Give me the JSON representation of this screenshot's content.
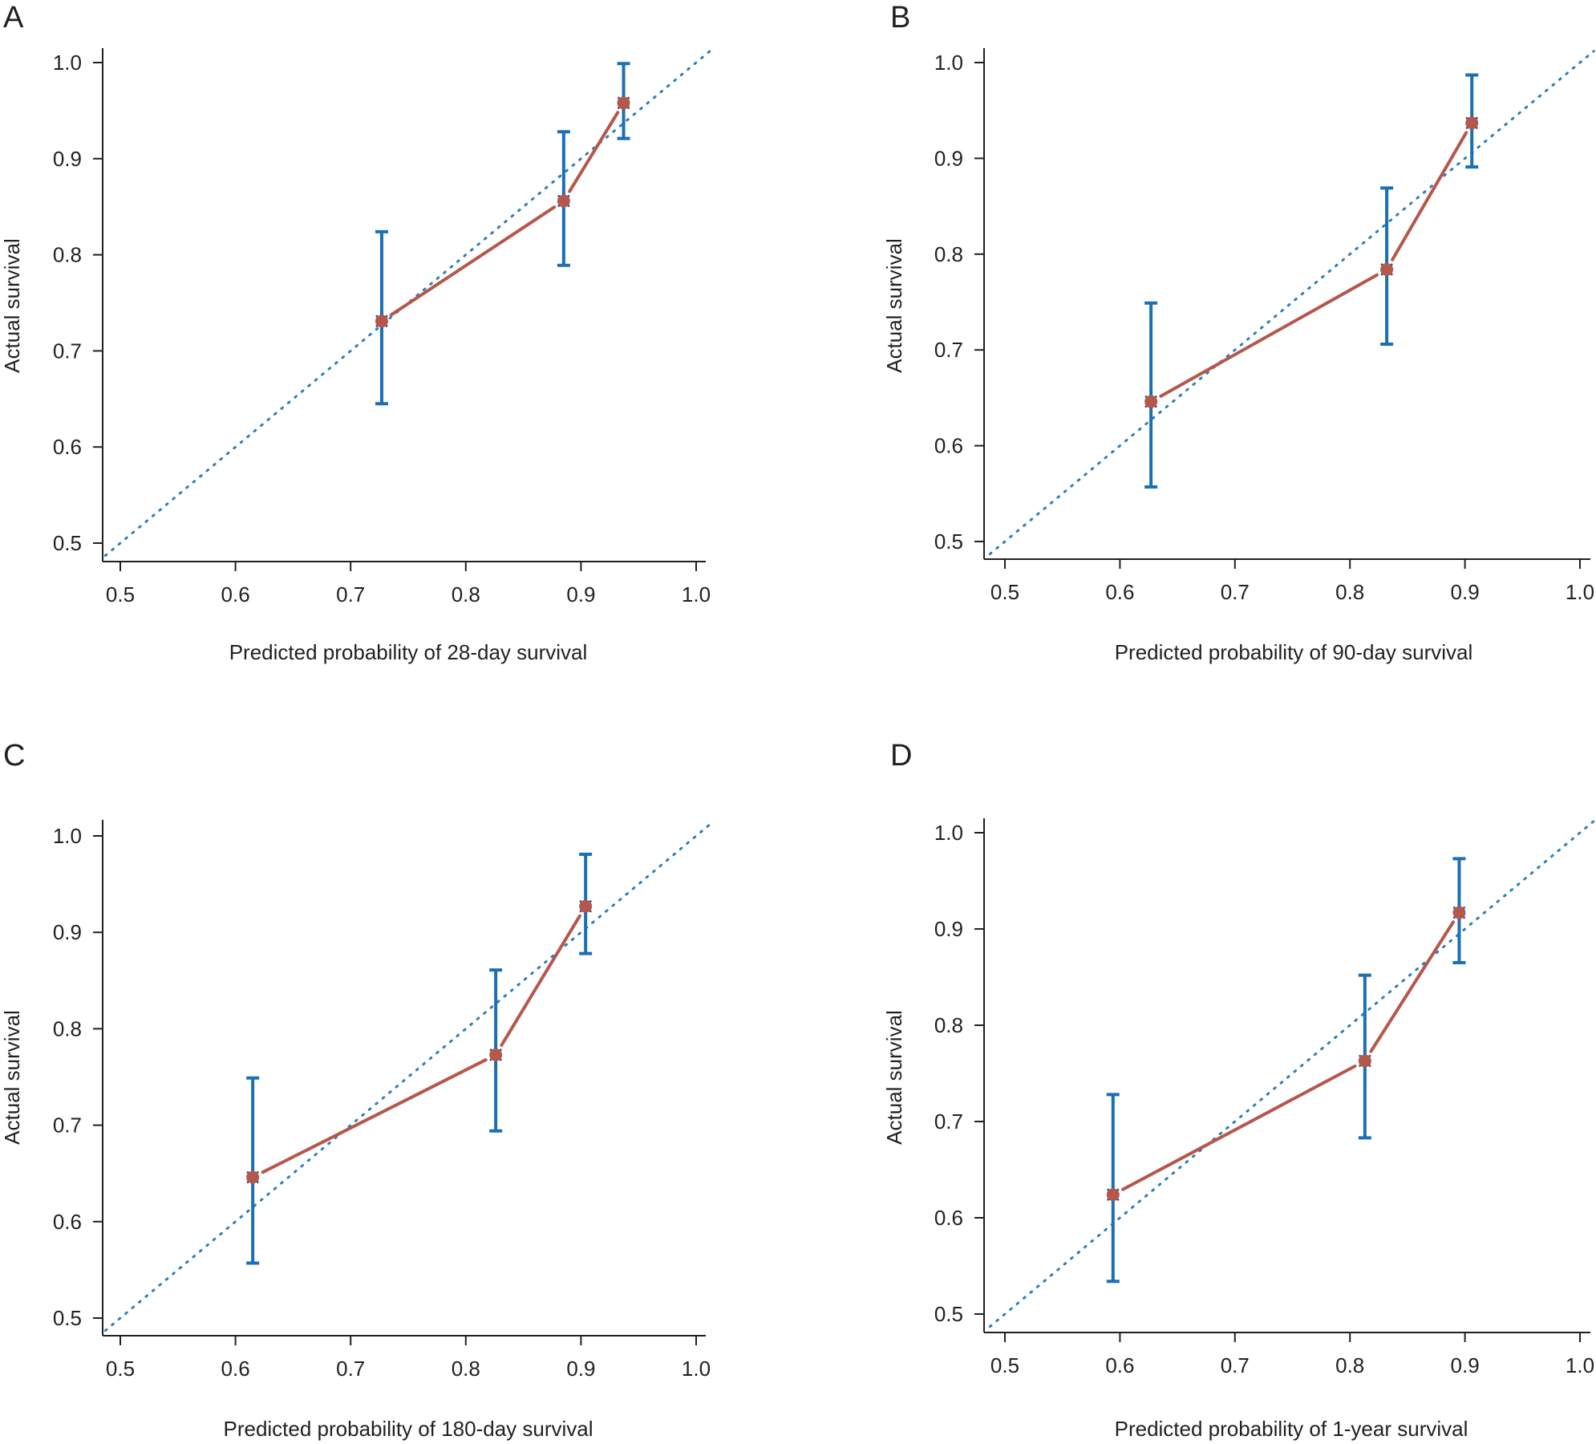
{
  "colors": {
    "observed_line": "#b5574a",
    "observed_point": "#b5574a",
    "error_bar": "#1b6fb5",
    "ideal_line": "#2c7fb8",
    "axis": "#231f20",
    "background": "#ffffff"
  },
  "chart_data": [
    {
      "type": "line",
      "panel": "A",
      "xlabel": "Predicted probability of 28-day survival",
      "ylabel": "Actual survival",
      "xlim": [
        0.5,
        1.0
      ],
      "ylim": [
        0.5,
        1.0
      ],
      "xticks": [
        "0.5",
        "0.6",
        "0.7",
        "0.8",
        "0.9",
        "1.0"
      ],
      "yticks": [
        "0.5",
        "0.6",
        "0.7",
        "0.8",
        "0.9",
        "1.0"
      ],
      "grid": false,
      "reference_line": "diagonal y = x (dotted)",
      "points": [
        {
          "x": 0.727,
          "y": 0.731,
          "lower": 0.645,
          "upper": 0.824
        },
        {
          "x": 0.885,
          "y": 0.856,
          "lower": 0.789,
          "upper": 0.928
        },
        {
          "x": 0.937,
          "y": 0.958,
          "lower": 0.921,
          "upper": 0.999
        }
      ]
    },
    {
      "type": "line",
      "panel": "B",
      "xlabel": "Predicted probability of 90-day survival",
      "ylabel": "Actual survival",
      "xlim": [
        0.5,
        1.0
      ],
      "ylim": [
        0.5,
        1.0
      ],
      "xticks": [
        "0.5",
        "0.6",
        "0.7",
        "0.8",
        "0.9",
        "1.0"
      ],
      "yticks": [
        "0.5",
        "0.6",
        "0.7",
        "0.8",
        "0.9",
        "1.0"
      ],
      "grid": false,
      "reference_line": "diagonal y = x (dotted)",
      "points": [
        {
          "x": 0.627,
          "y": 0.646,
          "lower": 0.557,
          "upper": 0.749
        },
        {
          "x": 0.832,
          "y": 0.784,
          "lower": 0.706,
          "upper": 0.869
        },
        {
          "x": 0.906,
          "y": 0.937,
          "lower": 0.891,
          "upper": 0.987
        }
      ]
    },
    {
      "type": "line",
      "panel": "C",
      "xlabel": "Predicted probability of 180-day survival",
      "ylabel": "Actual survival",
      "xlim": [
        0.5,
        1.0
      ],
      "ylim": [
        0.5,
        1.0
      ],
      "xticks": [
        "0.5",
        "0.6",
        "0.7",
        "0.8",
        "0.9",
        "1.0"
      ],
      "yticks": [
        "0.5",
        "0.6",
        "0.7",
        "0.8",
        "0.9",
        "1.0"
      ],
      "grid": false,
      "reference_line": "diagonal y = x (dotted)",
      "points": [
        {
          "x": 0.615,
          "y": 0.646,
          "lower": 0.557,
          "upper": 0.749
        },
        {
          "x": 0.826,
          "y": 0.773,
          "lower": 0.694,
          "upper": 0.861
        },
        {
          "x": 0.904,
          "y": 0.927,
          "lower": 0.878,
          "upper": 0.981
        }
      ]
    },
    {
      "type": "line",
      "panel": "D",
      "xlabel": "Predicted probability of 1-year survival",
      "ylabel": "Actual survival",
      "xlim": [
        0.5,
        1.0
      ],
      "ylim": [
        0.5,
        1.0
      ],
      "xticks": [
        "0.5",
        "0.6",
        "0.7",
        "0.8",
        "0.9",
        "1.0"
      ],
      "yticks": [
        "0.5",
        "0.6",
        "0.7",
        "0.8",
        "0.9",
        "1.0"
      ],
      "grid": false,
      "reference_line": "diagonal y = x (dotted)",
      "points": [
        {
          "x": 0.594,
          "y": 0.624,
          "lower": 0.534,
          "upper": 0.728
        },
        {
          "x": 0.813,
          "y": 0.763,
          "lower": 0.683,
          "upper": 0.852
        },
        {
          "x": 0.895,
          "y": 0.917,
          "lower": 0.865,
          "upper": 0.973
        }
      ]
    }
  ]
}
